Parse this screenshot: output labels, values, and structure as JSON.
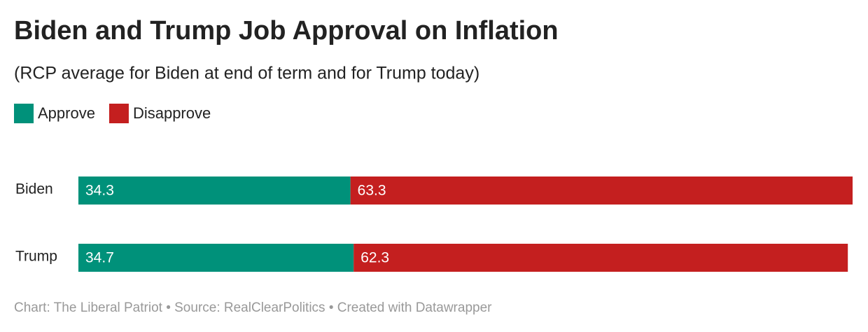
{
  "chart_data": {
    "type": "stacked-bar-horizontal",
    "title": "Biden and Trump Job Approval on Inflation",
    "subtitle": "(RCP average for Biden at end of term and for Trump today)",
    "categories": [
      "Biden",
      "Trump"
    ],
    "series": [
      {
        "name": "Approve",
        "color": "#00917a",
        "values": [
          34.3,
          34.7
        ]
      },
      {
        "name": "Disapprove",
        "color": "#c41f1f",
        "values": [
          63.3,
          62.3
        ]
      }
    ],
    "xlim": [
      0,
      97.6
    ],
    "legend": "top-left",
    "footer": "Chart: The Liberal Patriot • Source: RealClearPolitics • Created with Datawrapper"
  }
}
